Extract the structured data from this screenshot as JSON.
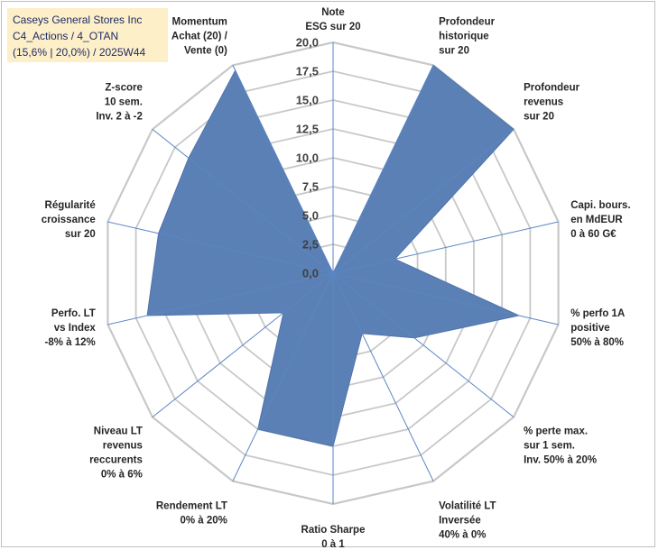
{
  "chart_data": {
    "type": "radar",
    "title_lines": [
      "Caseys General Stores Inc",
      "C4_Actions / 4_OTAN",
      "(15,6% | 20,0%) / 2025W44"
    ],
    "range": [
      0,
      20
    ],
    "ticks": [
      "0,0",
      "2,5",
      "5,0",
      "7,5",
      "10,0",
      "12,5",
      "15,0",
      "17,5",
      "20,0"
    ],
    "axes": [
      {
        "lines": [
          "Note",
          "ESG sur 20"
        ],
        "value": 0.0
      },
      {
        "lines": [
          "Profondeur",
          "historique",
          "sur 20"
        ],
        "value": 20.0
      },
      {
        "lines": [
          "Profondeur",
          "revenus",
          "sur 20"
        ],
        "value": 20.0
      },
      {
        "lines": [
          "Capi. bours.",
          "en MdEUR",
          "0 à 60 G€"
        ],
        "value": 5.5
      },
      {
        "lines": [
          "% perfo 1A",
          "positive",
          "50% à 80%"
        ],
        "value": 16.5
      },
      {
        "lines": [
          "% perte max.",
          "sur 1 sem.",
          "Inv. 50% à 20%"
        ],
        "value": 9.0
      },
      {
        "lines": [
          "Volatilité LT",
          "Inversée",
          "40% à 0%"
        ],
        "value": 5.8
      },
      {
        "lines": [
          "Ratio Sharpe",
          "0 à 1"
        ],
        "value": 15.0
      },
      {
        "lines": [
          "Rendement LT",
          "0% à 20%"
        ],
        "value": 15.0
      },
      {
        "lines": [
          "Niveau LT",
          "revenus",
          "reccurents",
          "0% à 6%"
        ],
        "value": 5.5
      },
      {
        "lines": [
          "Perfo. LT",
          "vs Index",
          "-8% à 12%"
        ],
        "value": 16.5
      },
      {
        "lines": [
          "Régularité",
          "croissance",
          "sur 20"
        ],
        "value": 15.5
      },
      {
        "lines": [
          "Z-score",
          "10 sem.",
          "Inv. 2 à -2"
        ],
        "value": 16.0
      },
      {
        "lines": [
          "Momentum",
          "Achat (20) /",
          "Vente (0)"
        ],
        "value": 19.5
      }
    ],
    "colors": {
      "fill": "#5b80b5",
      "stroke": "#4f73ab",
      "grid": "#c8c8c8",
      "spoke": "#5b86c5"
    }
  }
}
